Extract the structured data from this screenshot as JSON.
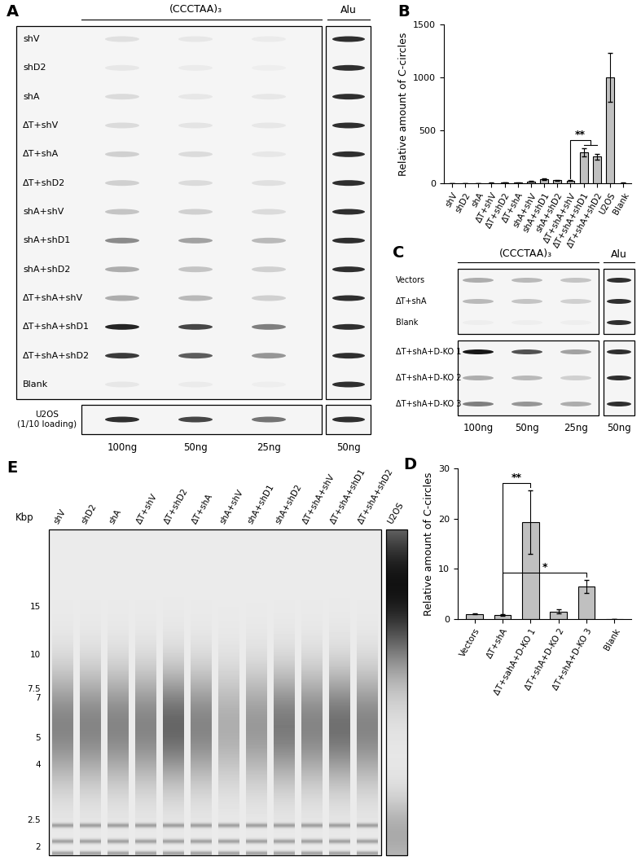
{
  "panels": {
    "A": {
      "header": "(CCCTAA)₃",
      "control_header": "Alu",
      "lanes": [
        "100ng",
        "50ng",
        "25ng"
      ],
      "control_lane": "50ng",
      "rows": [
        {
          "label": "shV",
          "signal": [
            0.08,
            0.05,
            0.03
          ],
          "alu": 0.85
        },
        {
          "label": "shD2",
          "signal": [
            0.05,
            0.03,
            0.02
          ],
          "alu": 0.85
        },
        {
          "label": "shA",
          "signal": [
            0.1,
            0.05,
            0.05
          ],
          "alu": 0.85
        },
        {
          "label": "ΔT+shV",
          "signal": [
            0.1,
            0.06,
            0.05
          ],
          "alu": 0.85
        },
        {
          "label": "ΔT+shA",
          "signal": [
            0.15,
            0.1,
            0.05
          ],
          "alu": 0.85
        },
        {
          "label": "ΔT+shD2",
          "signal": [
            0.15,
            0.1,
            0.08
          ],
          "alu": 0.85
        },
        {
          "label": "shA+shV",
          "signal": [
            0.2,
            0.15,
            0.1
          ],
          "alu": 0.85
        },
        {
          "label": "shA+shD1",
          "signal": [
            0.45,
            0.35,
            0.25
          ],
          "alu": 0.85
        },
        {
          "label": "shA+shD2",
          "signal": [
            0.3,
            0.2,
            0.15
          ],
          "alu": 0.85
        },
        {
          "label": "ΔT+shA+shV",
          "signal": [
            0.3,
            0.25,
            0.15
          ],
          "alu": 0.85
        },
        {
          "label": "ΔT+shA+shD1",
          "signal": [
            0.9,
            0.75,
            0.5
          ],
          "alu": 0.85
        },
        {
          "label": "ΔT+shA+shD2",
          "signal": [
            0.8,
            0.65,
            0.4
          ],
          "alu": 0.85
        },
        {
          "label": "Blank",
          "signal": [
            0.05,
            0.03,
            0.02
          ],
          "alu": 0.85
        }
      ],
      "reference_row": {
        "label": "U2OS\n(1/10 loading)",
        "signal": [
          0.85,
          0.75,
          0.55
        ],
        "alu": 0.85
      }
    },
    "C": {
      "header": "(CCCTAA)₃",
      "control_header": "Alu",
      "lanes": [
        "100ng",
        "50ng",
        "25ng"
      ],
      "control_lane": "50ng",
      "groups": [
        [
          {
            "label": "Vectors",
            "signal": [
              0.3,
              0.25,
              0.2
            ],
            "alu": 0.85
          },
          {
            "label": "ΔT+shA",
            "signal": [
              0.25,
              0.2,
              0.15
            ],
            "alu": 0.85
          },
          {
            "label": "Blank",
            "signal": [
              0.02,
              0.02,
              0.02
            ],
            "alu": 0.85
          }
        ],
        [
          {
            "label": "ΔT+shA+D-KO 1",
            "signal": [
              0.95,
              0.7,
              0.35
            ],
            "alu": 0.85
          },
          {
            "label": "ΔT+shA+D-KO 2",
            "signal": [
              0.3,
              0.25,
              0.15
            ],
            "alu": 0.85
          },
          {
            "label": "ΔT+shA+D-KO 3",
            "signal": [
              0.5,
              0.4,
              0.3
            ],
            "alu": 0.85
          }
        ]
      ]
    },
    "E": {
      "size_label": "Kbp",
      "sizes": [
        15,
        10,
        7.5,
        7,
        5,
        4,
        2.5,
        2
      ],
      "lanes": [
        {
          "label": "shV",
          "intensity": 0.5
        },
        {
          "label": "shD2",
          "intensity": 0.5
        },
        {
          "label": "shA",
          "intensity": 0.5
        },
        {
          "label": "ΔT+shV",
          "intensity": 0.5
        },
        {
          "label": "ΔT+shD2",
          "intensity": 0.65
        },
        {
          "label": "ΔT+shA",
          "intensity": 0.5
        },
        {
          "label": "shA+shV",
          "intensity": 0.3
        },
        {
          "label": "shA+shD1",
          "intensity": 0.4
        },
        {
          "label": "shA+shD2",
          "intensity": 0.55
        },
        {
          "label": "ΔT+shA+shV",
          "intensity": 0.5
        },
        {
          "label": "ΔT+shA+shD1",
          "intensity": 0.6
        },
        {
          "label": "ΔT+shA+shD2",
          "intensity": 0.5
        }
      ],
      "reference_lane": {
        "label": "U2OS",
        "intensity": 1.0
      }
    }
  },
  "chart_data": [
    {
      "panel": "B",
      "type": "bar",
      "categories": [
        "shV",
        "shD2",
        "shA",
        "ΔT+shV",
        "ΔT+shD2",
        "ΔT+shA",
        "shA+shV",
        "shA+shD1",
        "shA+shD2",
        "ΔT+shA+shV",
        "ΔT+shA+shD1",
        "ΔT+shA+shD2",
        "U2OS",
        "Blank"
      ],
      "values": [
        1,
        2,
        2,
        3,
        6,
        4,
        18,
        38,
        28,
        25,
        290,
        250,
        1000,
        3
      ],
      "errors": [
        0,
        0,
        0,
        1,
        2,
        1,
        4,
        8,
        5,
        5,
        40,
        30,
        230,
        1
      ],
      "color": "#c0c0c0",
      "y_label": "Relative amount of C-circles",
      "ylim": [
        0,
        1500
      ],
      "yticks": [
        0,
        500,
        1000,
        1500
      ],
      "annotations": [
        {
          "text": "**",
          "from": "ΔT+shA+shV",
          "to": [
            "ΔT+shA+shD1",
            "ΔT+shA+shD2"
          ]
        }
      ]
    },
    {
      "panel": "D",
      "type": "bar",
      "categories": [
        "Vectors",
        "ΔT+shA",
        "ΔT+sahA+D-KO 1",
        "ΔT+shA+D-KO 2",
        "ΔT+shA+D-KO 3",
        "Blank"
      ],
      "values": [
        1,
        0.8,
        19.3,
        1.5,
        6.5,
        0.05
      ],
      "errors": [
        0.1,
        0.1,
        6.3,
        0.4,
        1.3,
        0
      ],
      "color": "#c0c0c0",
      "y_label": "Relative amount of C-circles",
      "ylim": [
        0,
        30
      ],
      "yticks": [
        0,
        10,
        20,
        30
      ],
      "annotations": [
        {
          "text": "**",
          "from": "ΔT+shA",
          "to": [
            "ΔT+sahA+D-KO 1"
          ]
        },
        {
          "text": "*",
          "from": "ΔT+shA",
          "to": [
            "ΔT+shA+D-KO 3"
          ]
        }
      ]
    }
  ]
}
